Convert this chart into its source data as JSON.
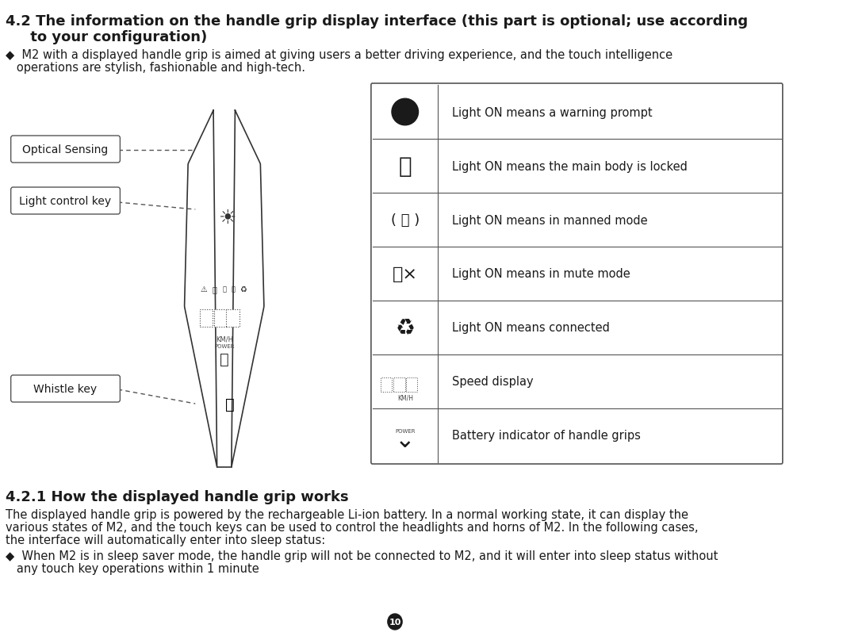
{
  "title_line1": "4.2 The information on the handle grip display interface (this part is optional; use according",
  "title_line2": "     to your configuration)",
  "bullet1_line1": "◆  M2 with a displayed handle grip is aimed at giving users a better driving experience, and the touch intelligence",
  "bullet1_line2": "   operations are stylish, fashionable and high-tech.",
  "section_title": "4.2.1 How the displayed handle grip works",
  "body_text_line1": "The displayed handle grip is powered by the rechargeable Li-ion battery. In a normal working state, it can display the",
  "body_text_line2": "various states of M2, and the touch keys can be used to control the headlights and horns of M2. In the following cases,",
  "body_text_line3": "the interface will automatically enter into sleep status:",
  "bullet2_line1": "◆  When M2 is in sleep saver mode, the handle grip will not be connected to M2, and it will enter into sleep status without",
  "bullet2_line2": "   any touch key operations within 1 minute",
  "page_number": "10",
  "label_optical": "Optical Sensing",
  "label_light": "Light control key",
  "label_whistle": "Whistle key",
  "table_rows": [
    {
      "label": "Light ON means a warning prompt"
    },
    {
      "label": "Light ON means the main body is locked"
    },
    {
      "label": "Light ON means in manned mode"
    },
    {
      "label": "Light ON means in mute mode"
    },
    {
      "label": "Light ON means connected"
    },
    {
      "label": "Speed display"
    },
    {
      "label": "Battery indicator of handle grips"
    }
  ],
  "bg_color": "#ffffff",
  "text_color": "#1a1a1a",
  "border_color": "#333333",
  "dashed_color": "#555555",
  "table_border_color": "#555555",
  "title_fontsize": 13,
  "body_fontsize": 10.5,
  "label_fontsize": 10,
  "section_fontsize": 13
}
